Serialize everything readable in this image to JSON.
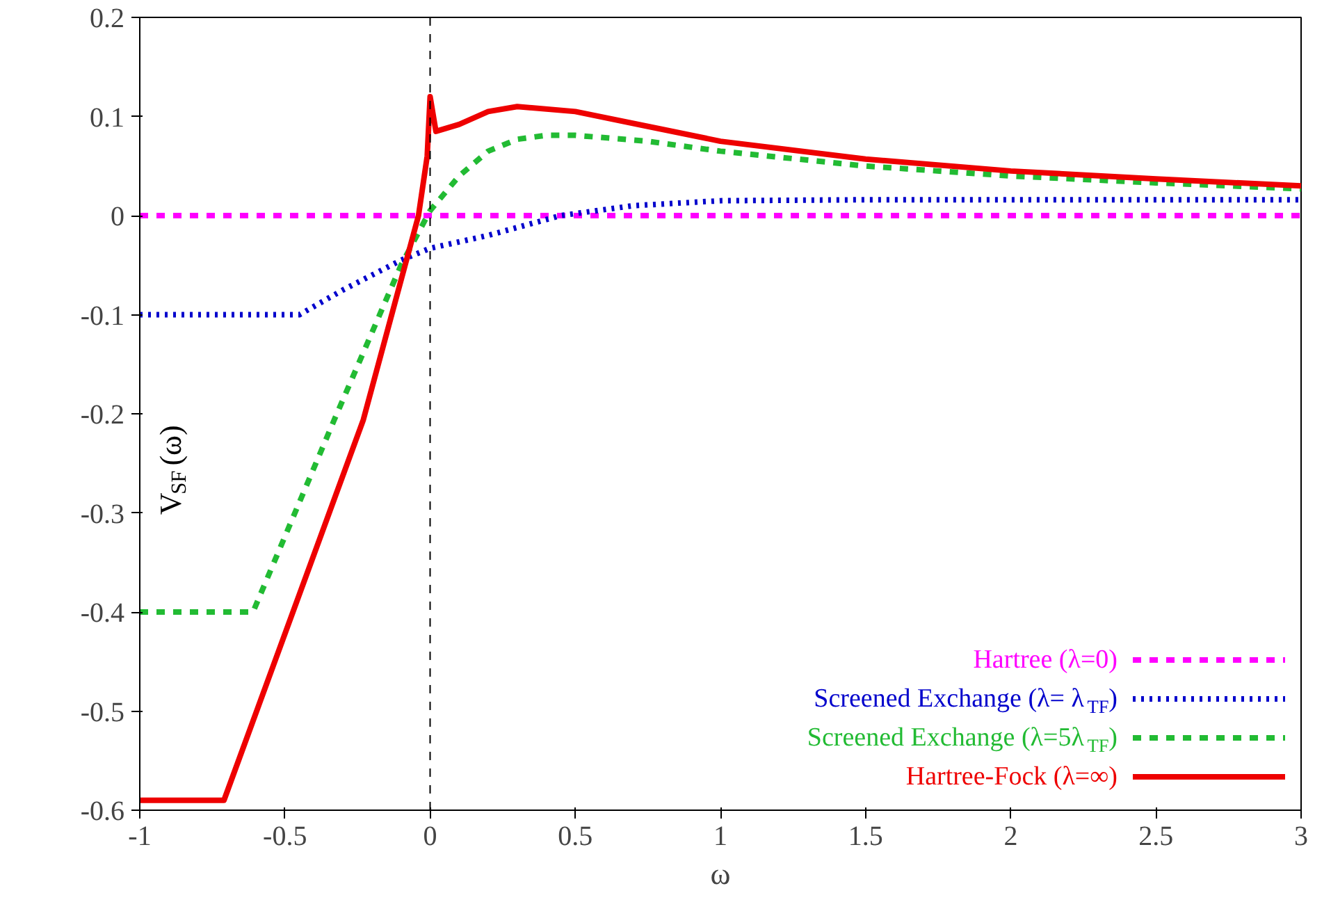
{
  "chart_data": {
    "type": "line",
    "xlabel": "ω",
    "ylabel": "V$_{SF}$(ω)",
    "xlim": [
      -1,
      3
    ],
    "xticks": [
      -1,
      {
        "value": -0.5,
        "label": "-0.5"
      },
      0,
      0.5,
      1,
      1.5,
      2,
      2.5,
      3
    ],
    "ylim": [
      -0.6,
      0.2
    ],
    "yticks": [
      -0.6,
      -0.5,
      -0.4,
      -0.3,
      -0.2,
      -0.1,
      0,
      0.1,
      0.2
    ],
    "grid": false,
    "legend": "bottom right",
    "marker": "none",
    "ref_lines": [
      {
        "axis": "x",
        "value": 0,
        "color": "#000000",
        "line_style": "dashed"
      }
    ],
    "series": [
      {
        "name": "Hartree (λ=0)",
        "color": "#ff00ff",
        "line_style": "dashed",
        "x": [
          -1,
          3
        ],
        "values": [
          0,
          0
        ]
      },
      {
        "name": "Screened Exchange (λ= λ$_{TF}$)",
        "color": "#0000cc",
        "line_style": "dotted",
        "x": [
          -1,
          -0.45,
          -0.3,
          -0.1,
          0,
          0.2,
          0.45,
          0.7,
          1,
          1.5,
          2,
          3
        ],
        "values": [
          -0.1,
          -0.1,
          -0.075,
          -0.045,
          -0.033,
          -0.02,
          0,
          0.01,
          0.015,
          0.016,
          0.016,
          0.016
        ]
      },
      {
        "name": "Screened Exchange (λ=5λ$_{TF}$)",
        "color": "#22bb33",
        "line_style": "dashed",
        "x": [
          -1,
          -0.61,
          -0.33,
          -0.1,
          0,
          0.1,
          0.2,
          0.3,
          0.4,
          0.5,
          0.75,
          1,
          1.5,
          2,
          2.5,
          3
        ],
        "values": [
          -0.4,
          -0.4,
          -0.206,
          -0.05,
          0.005,
          0.04,
          0.065,
          0.077,
          0.081,
          0.081,
          0.075,
          0.065,
          0.05,
          0.04,
          0.033,
          0.027
        ]
      },
      {
        "name": "Hartree-Fock (λ=∞)",
        "color": "#ee0000",
        "line_style": "solid",
        "x": [
          -1,
          -0.71,
          -0.23,
          -0.04,
          -0.01,
          0,
          0.02,
          0.1,
          0.2,
          0.3,
          0.5,
          0.75,
          1,
          1.5,
          2,
          2.5,
          3
        ],
        "values": [
          -0.59,
          -0.59,
          -0.206,
          0,
          0.06,
          0.12,
          0.085,
          0.092,
          0.105,
          0.11,
          0.105,
          0.09,
          0.075,
          0.057,
          0.045,
          0.037,
          0.03
        ]
      }
    ]
  }
}
